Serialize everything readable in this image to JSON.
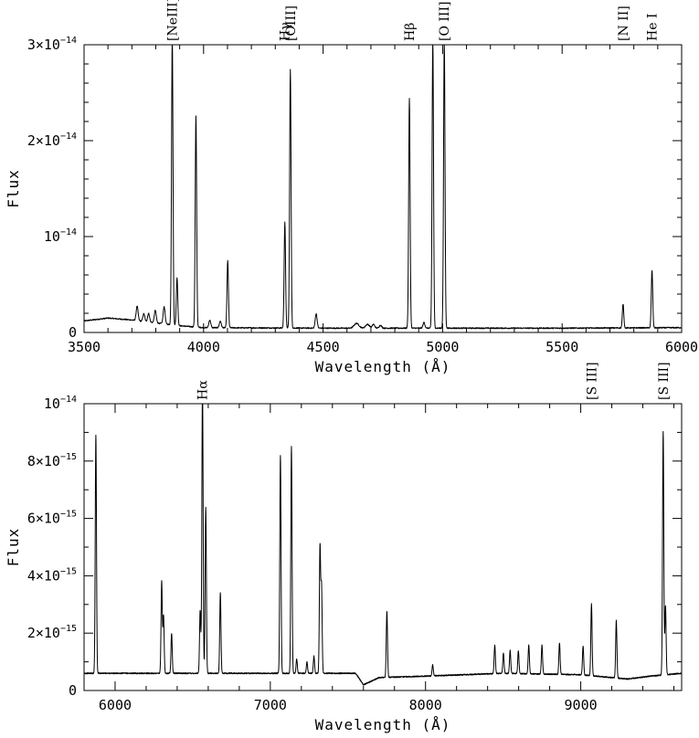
{
  "chart_data": [
    {
      "type": "line",
      "xlabel": "Wavelength (Å)",
      "ylabel": "Flux",
      "xlim": [
        3500,
        6000
      ],
      "ylim": [
        0,
        3e-14
      ],
      "x_ticks": [
        {
          "value": 3500,
          "label": "3500"
        },
        {
          "value": 4000,
          "label": "4000"
        },
        {
          "value": 4500,
          "label": "4500"
        },
        {
          "value": 5000,
          "label": "5000"
        },
        {
          "value": 5500,
          "label": "5500"
        },
        {
          "value": 6000,
          "label": "6000"
        }
      ],
      "x_minor_step": 100,
      "y_ticks": [
        {
          "value": 0,
          "label": "0",
          "sup": ""
        },
        {
          "value": 1e-14,
          "label": "10",
          "sup": "−14"
        },
        {
          "value": 2e-14,
          "label": "2×10",
          "sup": "−14"
        },
        {
          "value": 3e-14,
          "label": "3×10",
          "sup": "−14"
        }
      ],
      "y_minor_step": 2e-15,
      "continuum": [
        [
          3500,
          1.2e-15
        ],
        [
          3600,
          1.5e-15
        ],
        [
          3700,
          1.3e-15
        ],
        [
          3800,
          1e-15
        ],
        [
          3900,
          7e-16
        ],
        [
          4000,
          5e-16
        ],
        [
          4500,
          4.5e-16
        ],
        [
          5000,
          4.5e-16
        ],
        [
          5500,
          4.5e-16
        ],
        [
          6000,
          5e-16
        ]
      ],
      "lines": [
        {
          "x": 3722,
          "peak": 1.5e-15,
          "w": 4
        },
        {
          "x": 3750,
          "peak": 8e-16,
          "w": 4
        },
        {
          "x": 3770,
          "peak": 9e-16,
          "w": 4
        },
        {
          "x": 3798,
          "peak": 1.3e-15,
          "w": 4
        },
        {
          "x": 3835,
          "peak": 1.8e-15,
          "w": 4
        },
        {
          "x": 3869,
          "peak": 3e-14,
          "w": 3
        },
        {
          "x": 3889,
          "peak": 5e-15,
          "w": 3
        },
        {
          "x": 3968,
          "peak": 2.2e-14,
          "w": 3
        },
        {
          "x": 4026,
          "peak": 8e-16,
          "w": 4
        },
        {
          "x": 4070,
          "peak": 7e-16,
          "w": 4
        },
        {
          "x": 4101,
          "peak": 7e-15,
          "w": 3
        },
        {
          "x": 4340,
          "peak": 1.1e-14,
          "w": 3
        },
        {
          "x": 4363,
          "peak": 2.7e-14,
          "w": 3
        },
        {
          "x": 4471,
          "peak": 1.5e-15,
          "w": 4
        },
        {
          "x": 4640,
          "peak": 5e-16,
          "w": 10
        },
        {
          "x": 4686,
          "peak": 4e-16,
          "w": 8
        },
        {
          "x": 4711,
          "peak": 4e-16,
          "w": 5
        },
        {
          "x": 4740,
          "peak": 3e-16,
          "w": 5
        },
        {
          "x": 4861,
          "peak": 2.4e-14,
          "w": 3
        },
        {
          "x": 4922,
          "peak": 6e-16,
          "w": 4
        },
        {
          "x": 4959,
          "peak": 3e-14,
          "w": 3
        },
        {
          "x": 5007,
          "peak": 3e-14,
          "w": 3
        },
        {
          "x": 5755,
          "peak": 2.5e-15,
          "w": 3
        },
        {
          "x": 5876,
          "peak": 6e-15,
          "w": 3
        }
      ],
      "annotations": [
        {
          "x": 3869,
          "label": "[NeIII]"
        },
        {
          "x": 4340,
          "label": "Hγ"
        },
        {
          "x": 4363,
          "label": "[OIII]"
        },
        {
          "x": 4861,
          "label": "Hβ"
        },
        {
          "x": 5007,
          "label": "[O III]"
        },
        {
          "x": 5755,
          "label": "[N II]"
        },
        {
          "x": 5876,
          "label": "He I"
        }
      ]
    },
    {
      "type": "line",
      "xlabel": "Wavelength (Å)",
      "ylabel": "Flux",
      "xlim": [
        5800,
        9650
      ],
      "ylim": [
        0,
        1e-14
      ],
      "x_ticks": [
        {
          "value": 6000,
          "label": "6000"
        },
        {
          "value": 7000,
          "label": "7000"
        },
        {
          "value": 8000,
          "label": "8000"
        },
        {
          "value": 9000,
          "label": "9000"
        }
      ],
      "x_minor_step": 200,
      "y_ticks": [
        {
          "value": 0,
          "label": "0",
          "sup": ""
        },
        {
          "value": 2e-15,
          "label": "2×10",
          "sup": "−15"
        },
        {
          "value": 4e-15,
          "label": "4×10",
          "sup": "−15"
        },
        {
          "value": 6e-15,
          "label": "6×10",
          "sup": "−15"
        },
        {
          "value": 8e-15,
          "label": "8×10",
          "sup": "−15"
        },
        {
          "value": 1e-14,
          "label": "10",
          "sup": "−14"
        }
      ],
      "y_minor_step": 1e-15,
      "continuum": [
        [
          5800,
          6e-16
        ],
        [
          6500,
          6e-16
        ],
        [
          7000,
          6e-16
        ],
        [
          7550,
          6e-16
        ],
        [
          7600,
          2e-16
        ],
        [
          7700,
          4.5e-16
        ],
        [
          8000,
          5e-16
        ],
        [
          8500,
          6e-16
        ],
        [
          9000,
          5.5e-16
        ],
        [
          9300,
          4e-16
        ],
        [
          9450,
          5e-16
        ],
        [
          9650,
          6e-16
        ]
      ],
      "lines": [
        {
          "x": 5876,
          "peak": 8.3e-15,
          "w": 4
        },
        {
          "x": 6300,
          "peak": 3.2e-15,
          "w": 4
        },
        {
          "x": 6312,
          "peak": 2e-15,
          "w": 4
        },
        {
          "x": 6364,
          "peak": 1.4e-15,
          "w": 4
        },
        {
          "x": 6548,
          "peak": 2.2e-15,
          "w": 4
        },
        {
          "x": 6563,
          "peak": 1e-14,
          "w": 4
        },
        {
          "x": 6584,
          "peak": 5.8e-15,
          "w": 4
        },
        {
          "x": 6678,
          "peak": 2.8e-15,
          "w": 4
        },
        {
          "x": 7065,
          "peak": 7.6e-15,
          "w": 4
        },
        {
          "x": 7136,
          "peak": 7.9e-15,
          "w": 4
        },
        {
          "x": 7170,
          "peak": 5e-16,
          "w": 4
        },
        {
          "x": 7236,
          "peak": 4e-16,
          "w": 4
        },
        {
          "x": 7281,
          "peak": 6e-16,
          "w": 4
        },
        {
          "x": 7320,
          "peak": 4.4e-15,
          "w": 4
        },
        {
          "x": 7330,
          "peak": 3e-15,
          "w": 4
        },
        {
          "x": 7751,
          "peak": 2.3e-15,
          "w": 4
        },
        {
          "x": 8046,
          "peak": 4e-16,
          "w": 4
        },
        {
          "x": 8446,
          "peak": 1e-15,
          "w": 4
        },
        {
          "x": 8502,
          "peak": 7e-16,
          "w": 4
        },
        {
          "x": 8545,
          "peak": 8e-16,
          "w": 4
        },
        {
          "x": 8598,
          "peak": 8e-16,
          "w": 4
        },
        {
          "x": 8665,
          "peak": 1e-15,
          "w": 4
        },
        {
          "x": 8750,
          "peak": 1e-15,
          "w": 4
        },
        {
          "x": 8863,
          "peak": 1.1e-15,
          "w": 4
        },
        {
          "x": 9015,
          "peak": 1e-15,
          "w": 4
        },
        {
          "x": 9069,
          "peak": 2.5e-15,
          "w": 4
        },
        {
          "x": 9229,
          "peak": 2e-15,
          "w": 4
        },
        {
          "x": 9531,
          "peak": 8.5e-15,
          "w": 4
        },
        {
          "x": 9546,
          "peak": 2.4e-15,
          "w": 4
        }
      ],
      "annotations": [
        {
          "x": 6563,
          "label": "Hα"
        },
        {
          "x": 9069,
          "label": "[S III]"
        },
        {
          "x": 9531,
          "label": "[S III]"
        }
      ]
    }
  ]
}
